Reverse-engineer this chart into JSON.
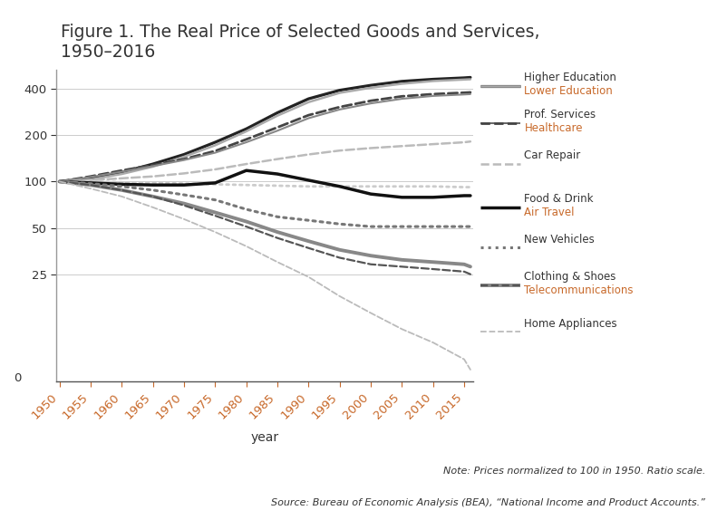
{
  "title": "Figure 1. The Real Price of Selected Goods and Services,\n1950–2016",
  "xlabel": "year",
  "note": "Note: Prices normalized to 100 in 1950. Ratio scale.",
  "source": "Source: Bureau of Economic Analysis (BEA), “National Income and Product Accounts.”",
  "years": [
    1950,
    1955,
    1960,
    1965,
    1970,
    1975,
    1980,
    1985,
    1990,
    1995,
    2000,
    2005,
    2010,
    2015,
    2016
  ],
  "series": {
    "Higher Education": {
      "values": [
        100,
        105,
        115,
        130,
        150,
        180,
        220,
        280,
        345,
        392,
        422,
        448,
        462,
        472,
        475
      ],
      "color": "#222222",
      "linestyle": "solid",
      "linewidth": 2.3
    },
    "Lower Education": {
      "values": [
        100,
        103,
        112,
        125,
        145,
        172,
        212,
        268,
        328,
        377,
        407,
        432,
        450,
        460,
        462
      ],
      "color": "#aaaaaa",
      "linestyle": "solid",
      "linewidth": 1.8
    },
    "Prof. Services": {
      "values": [
        100,
        108,
        118,
        128,
        140,
        158,
        188,
        225,
        270,
        305,
        335,
        358,
        370,
        378,
        380
      ],
      "color": "#444444",
      "linestyle": "dashed",
      "linewidth": 2.0
    },
    "Healthcare": {
      "values": [
        100,
        107,
        116,
        126,
        138,
        154,
        180,
        214,
        258,
        294,
        322,
        345,
        360,
        368,
        370
      ],
      "color": "#888888",
      "linestyle": "solid",
      "linewidth": 1.5
    },
    "Car Repair": {
      "values": [
        100,
        102,
        105,
        108,
        113,
        120,
        130,
        140,
        150,
        159,
        165,
        170,
        175,
        180,
        182
      ],
      "color": "#bbbbbb",
      "linestyle": "dashed",
      "linewidth": 1.8
    },
    "Food & Drink": {
      "values": [
        100,
        100,
        99,
        98,
        97,
        96,
        95,
        94,
        93,
        93,
        93,
        93,
        93,
        92,
        92
      ],
      "color": "#cccccc",
      "linestyle": "dotted",
      "linewidth": 2.0
    },
    "Air Travel": {
      "values": [
        100,
        98,
        96,
        95,
        95,
        98,
        118,
        112,
        102,
        93,
        83,
        79,
        79,
        81,
        81
      ],
      "color": "#111111",
      "linestyle": "solid",
      "linewidth": 2.5
    },
    "New Vehicles": {
      "values": [
        100,
        97,
        93,
        88,
        82,
        76,
        66,
        59,
        56,
        53,
        51,
        51,
        51,
        51,
        51
      ],
      "color": "#777777",
      "linestyle": "dotted",
      "linewidth": 2.2
    },
    "Clothing & Shoes": {
      "values": [
        100,
        95,
        88,
        80,
        72,
        63,
        55,
        47,
        41,
        36,
        33,
        31,
        30,
        29,
        28
      ],
      "color": "#888888",
      "linestyle": "solid",
      "linewidth": 2.8
    },
    "Telecommunications": {
      "values": [
        100,
        95,
        88,
        80,
        70,
        60,
        51,
        43,
        37,
        32,
        29,
        28,
        27,
        26,
        25
      ],
      "color": "#555555",
      "linestyle": "dashed",
      "linewidth": 1.6
    },
    "Home Appliances": {
      "values": [
        100,
        90,
        80,
        68,
        57,
        47,
        38,
        30,
        24,
        18,
        14,
        11,
        9,
        7,
        6
      ],
      "color": "#bbbbbb",
      "linestyle": "dashed",
      "linewidth": 1.3
    }
  },
  "legend_order": [
    "Higher Education",
    "Lower Education",
    "Prof. Services",
    "Healthcare",
    "Car Repair",
    "Food & Drink",
    "Air Travel",
    "New Vehicles",
    "Clothing & Shoes",
    "Telecommunications",
    "Home Appliances"
  ],
  "legend_pairs": [
    [
      "Higher Education",
      "Lower Education"
    ],
    [
      "Prof. Services",
      "Healthcare"
    ],
    [
      "Car Repair",
      null
    ],
    [
      "Food & Drink",
      "Air Travel"
    ],
    [
      "New Vehicles",
      null
    ],
    [
      "Clothing & Shoes",
      "Telecommunications"
    ],
    [
      "Home Appliances",
      null
    ]
  ],
  "ytick_positions": [
    0,
    25,
    50,
    100,
    200,
    400
  ],
  "xticks": [
    1950,
    1955,
    1960,
    1965,
    1970,
    1975,
    1980,
    1985,
    1990,
    1995,
    2000,
    2005,
    2010,
    2015
  ],
  "background_color": "#ffffff",
  "text_color": "#333333",
  "orange_color": "#c8692a",
  "axis_color": "#444444"
}
